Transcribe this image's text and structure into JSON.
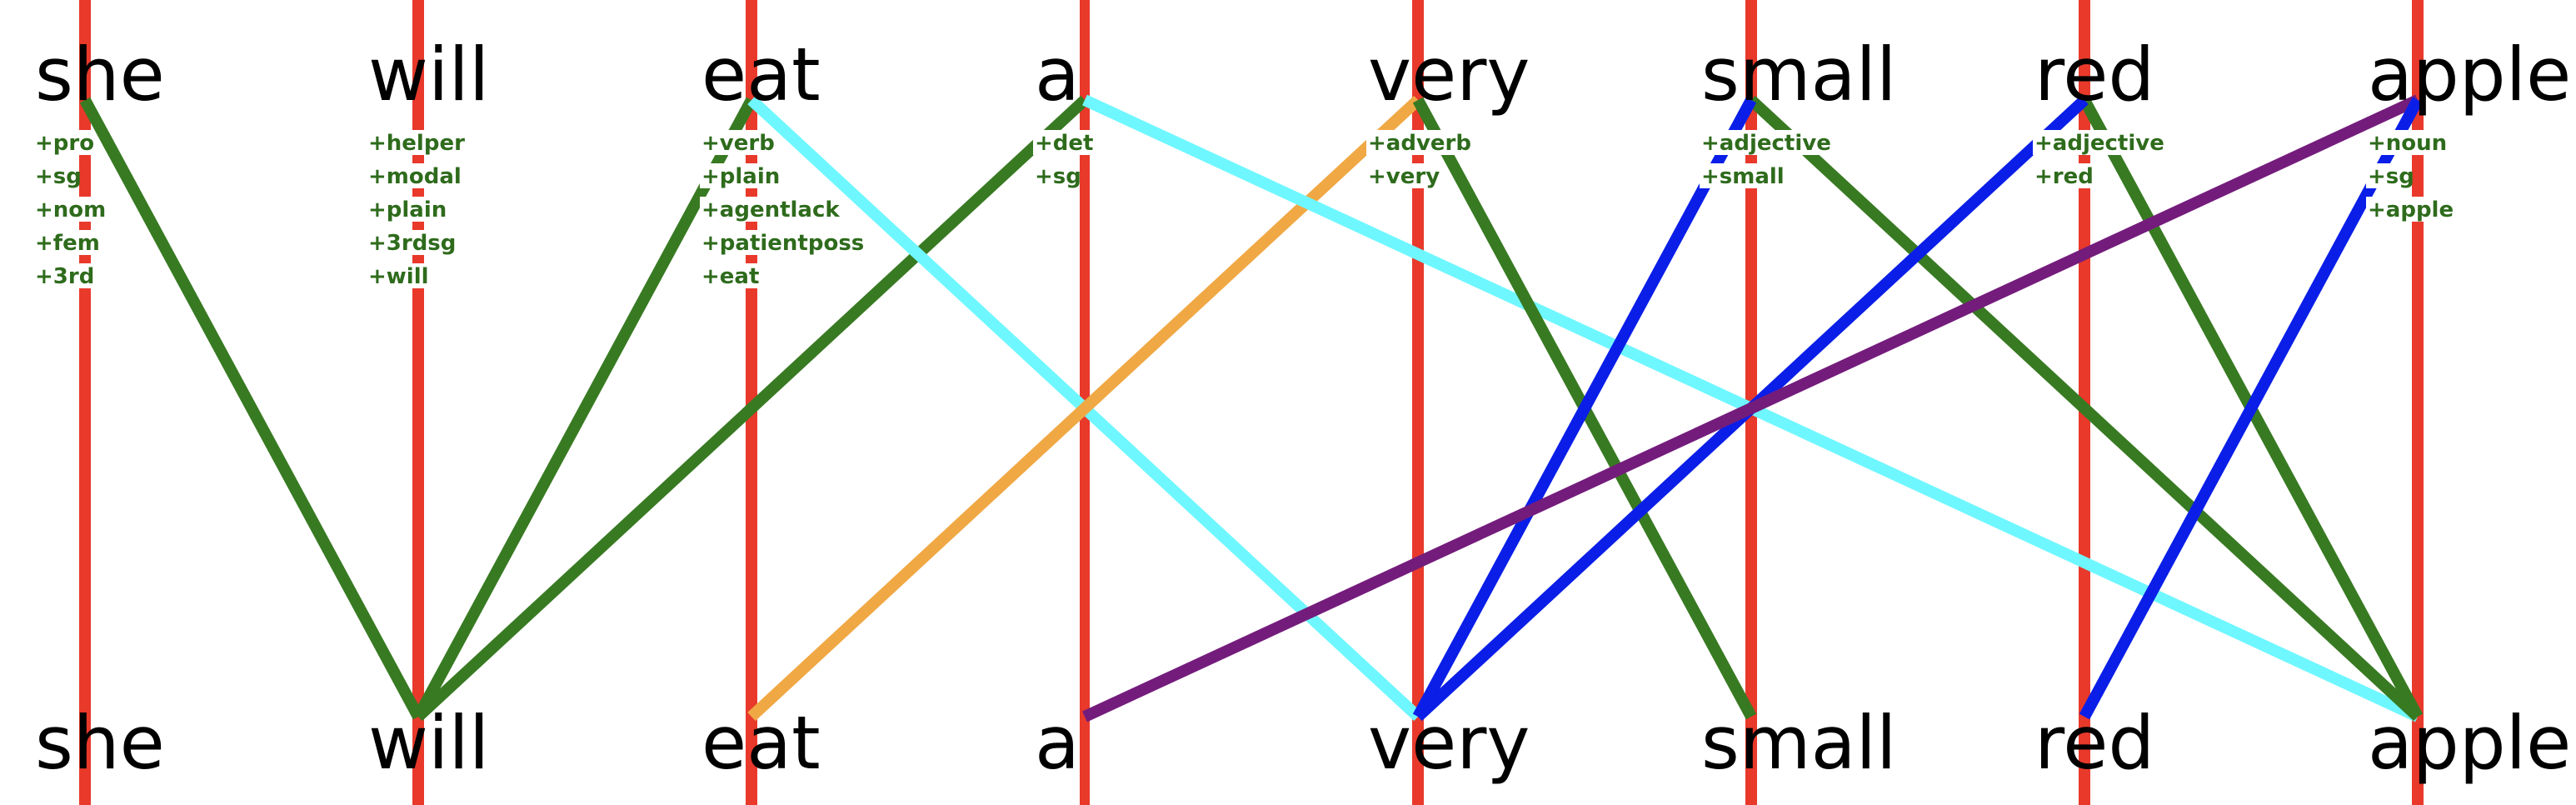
{
  "sentence_top": [
    "she",
    "will",
    "eat",
    "a",
    "very",
    "small",
    "red",
    "apple"
  ],
  "sentence_bottom": [
    "she",
    "will",
    "eat",
    "a",
    "very",
    "small",
    "red",
    "apple"
  ],
  "features": [
    [
      "+pro",
      "+sg",
      "+nom",
      "+fem",
      "+3rd"
    ],
    [
      "+helper",
      "+modal",
      "+plain",
      "+3rdsg",
      "+will"
    ],
    [
      "+verb",
      "+plain",
      "+agentlack",
      "+patientposs",
      "+eat"
    ],
    [
      "+det",
      "+sg"
    ],
    [
      "+adverb",
      "+very"
    ],
    [
      "+adjective",
      "+small"
    ],
    [
      "+adjective",
      "+red"
    ],
    [
      "+noun",
      "+sg",
      "+apple"
    ]
  ],
  "colors": {
    "column": "#e8392b",
    "green": "#387a22",
    "cyan": "#6ff7ff",
    "orange": "#f0a844",
    "blue": "#0a1ee8",
    "purple": "#741c7c",
    "feature_text": "#2e6b1c"
  },
  "links": [
    {
      "from": 0,
      "to": 1,
      "color": "green"
    },
    {
      "from": 2,
      "to": 1,
      "color": "green"
    },
    {
      "from": 3,
      "to": 1,
      "color": "green"
    },
    {
      "from": 2,
      "to": 4,
      "color": "cyan"
    },
    {
      "from": 4,
      "to": 2,
      "color": "orange"
    },
    {
      "from": 3,
      "to": 7,
      "color": "cyan"
    },
    {
      "from": 4,
      "to": 5,
      "color": "green"
    },
    {
      "from": 5,
      "to": 7,
      "color": "green"
    },
    {
      "from": 6,
      "to": 7,
      "color": "green"
    },
    {
      "from": 5,
      "to": 4,
      "color": "blue"
    },
    {
      "from": 6,
      "to": 4,
      "color": "blue"
    },
    {
      "from": 7,
      "to": 3,
      "color": "purple"
    },
    {
      "from": 7,
      "to": 6,
      "color": "blue"
    }
  ]
}
